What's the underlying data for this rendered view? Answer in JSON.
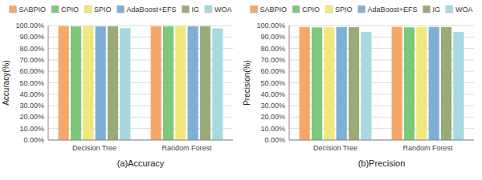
{
  "chart_data": [
    {
      "type": "bar",
      "xlabel": "(a)Accuracy",
      "ylabel": "Accuracy(%)",
      "categories": [
        "Decision Tree",
        "Random Forest"
      ],
      "series": [
        {
          "name": "SABPIO",
          "color": "#F4A86A",
          "values": [
            99.5,
            99.5
          ]
        },
        {
          "name": "CPIO",
          "color": "#7DC87A",
          "values": [
            99.3,
            99.3
          ]
        },
        {
          "name": "SPIO",
          "color": "#F0E87A",
          "values": [
            99.4,
            99.4
          ]
        },
        {
          "name": "AdaBoost+EFS",
          "color": "#7EB0D5",
          "values": [
            99.3,
            99.3
          ]
        },
        {
          "name": "IG",
          "color": "#9AAA78",
          "values": [
            99.4,
            99.4
          ]
        },
        {
          "name": "WOA",
          "color": "#A8D8E0",
          "values": [
            97.8,
            97.5
          ]
        }
      ],
      "ylim": [
        0,
        100
      ],
      "yticks": [
        {
          "value": 0,
          "label": "0.00%"
        },
        {
          "value": 10,
          "label": "10.00%"
        },
        {
          "value": 20,
          "label": "20.00%"
        },
        {
          "value": 30,
          "label": "30.00%"
        },
        {
          "value": 40,
          "label": "40.00%"
        },
        {
          "value": 50,
          "label": "50.00%"
        },
        {
          "value": 60,
          "label": "60.00%"
        },
        {
          "value": 70,
          "label": "70.00%"
        },
        {
          "value": 80,
          "label": "80.00%"
        },
        {
          "value": 90,
          "label": "90.00%"
        },
        {
          "value": 100,
          "label": "100.00%"
        }
      ],
      "grid": true,
      "legend": "top"
    },
    {
      "type": "bar",
      "xlabel": "(b)Precision",
      "ylabel": "Precision(%)",
      "categories": [
        "Decision Tree",
        "Random Forest"
      ],
      "series": [
        {
          "name": "SABPIO",
          "color": "#F4A86A",
          "values": [
            98.8,
            98.9
          ]
        },
        {
          "name": "CPIO",
          "color": "#7DC87A",
          "values": [
            98.4,
            98.5
          ]
        },
        {
          "name": "SPIO",
          "color": "#F0E87A",
          "values": [
            98.5,
            98.7
          ]
        },
        {
          "name": "AdaBoost+EFS",
          "color": "#7EB0D5",
          "values": [
            98.8,
            98.8
          ]
        },
        {
          "name": "IG",
          "color": "#9AAA78",
          "values": [
            98.6,
            98.7
          ]
        },
        {
          "name": "WOA",
          "color": "#A8D8E0",
          "values": [
            94.5,
            94.5
          ]
        }
      ],
      "ylim": [
        0,
        100
      ],
      "yticks": [
        {
          "value": 0,
          "label": "0.00%"
        },
        {
          "value": 10,
          "label": "10.00%"
        },
        {
          "value": 20,
          "label": "20.00%"
        },
        {
          "value": 30,
          "label": "30.00%"
        },
        {
          "value": 40,
          "label": "40.00%"
        },
        {
          "value": 50,
          "label": "50.00%"
        },
        {
          "value": 60,
          "label": "60.00%"
        },
        {
          "value": 70,
          "label": "70.00%"
        },
        {
          "value": 80,
          "label": "80.00%"
        },
        {
          "value": 90,
          "label": "90.00%"
        },
        {
          "value": 100,
          "label": "100.00%"
        }
      ],
      "grid": true,
      "legend": "top"
    }
  ]
}
